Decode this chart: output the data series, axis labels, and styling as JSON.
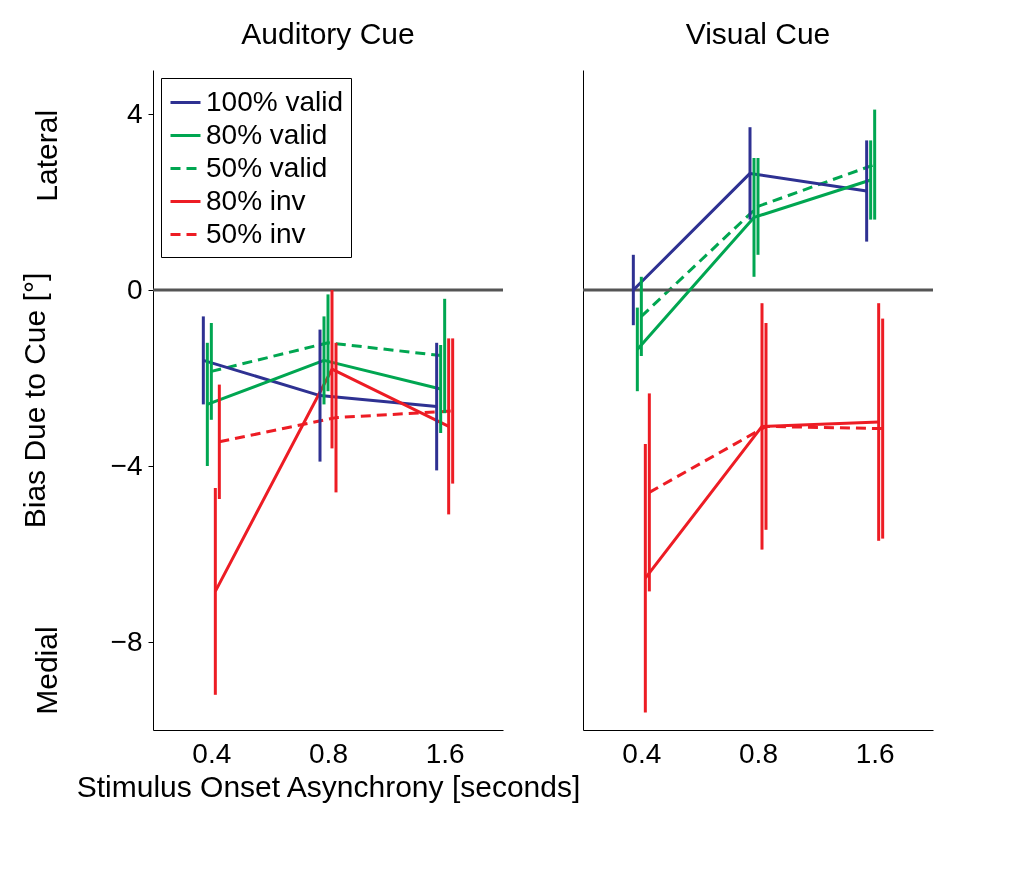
{
  "chart_data": [
    {
      "type": "line",
      "title": "Auditory Cue",
      "xlabel": "Stimulus Onset Asynchrony [seconds]",
      "ylabel": "Bias Due to Cue [°]",
      "categories": [
        "0.4",
        "0.8",
        "1.6"
      ],
      "ylim": [
        -10,
        5
      ],
      "yticks": [
        -8,
        -4,
        0,
        4
      ],
      "legend": "top left",
      "annotations": [
        "Lateral",
        "Medial"
      ],
      "ref_lines": [
        {
          "axis": "y",
          "value": 0,
          "color": "#555555"
        }
      ],
      "series": [
        {
          "name": "100% valid",
          "color": "#2e3192",
          "line_style": "solid",
          "values": [
            -1.6,
            -2.4,
            -2.65
          ],
          "errors": [
            1.0,
            1.5,
            1.45
          ]
        },
        {
          "name": "80% valid",
          "color": "#00a651",
          "line_style": "solid",
          "values": [
            -2.6,
            -1.6,
            -2.25
          ],
          "errors": [
            1.4,
            1.0,
            1.0
          ]
        },
        {
          "name": "50% valid",
          "color": "#00a651",
          "line_style": "dashed",
          "values": [
            -1.85,
            -1.2,
            -1.5
          ],
          "errors": [
            1.1,
            1.1,
            1.3
          ]
        },
        {
          "name": "80% inv",
          "color": "#ed1c24",
          "line_style": "solid",
          "values": [
            -6.85,
            -1.8,
            -3.1
          ],
          "errors": [
            2.35,
            1.8,
            2.0
          ]
        },
        {
          "name": "50% inv",
          "color": "#ed1c24",
          "line_style": "dashed",
          "values": [
            -3.45,
            -2.9,
            -2.75
          ],
          "errors": [
            1.3,
            1.7,
            1.65
          ]
        }
      ]
    },
    {
      "type": "line",
      "title": "Visual Cue",
      "categories": [
        "0.4",
        "0.8",
        "1.6"
      ],
      "ylim": [
        -10,
        5
      ],
      "yticks": [
        -8,
        -4,
        0,
        4
      ],
      "tick_labels": "x",
      "ref_lines": [
        {
          "axis": "y",
          "value": 0,
          "color": "#555555"
        }
      ],
      "series": [
        {
          "color": "#2e3192",
          "line_style": "solid",
          "values": [
            0,
            2.65,
            2.25
          ],
          "errors": [
            0.8,
            1.05,
            1.15
          ]
        },
        {
          "color": "#00a651",
          "line_style": "solid",
          "values": [
            -1.35,
            1.65,
            2.5
          ],
          "errors": [
            0.95,
            1.35,
            0.9
          ]
        },
        {
          "color": "#00a651",
          "line_style": "dashed",
          "values": [
            -0.6,
            1.9,
            2.85
          ],
          "errors": [
            0.9,
            1.1,
            1.25
          ]
        },
        {
          "color": "#ed1c24",
          "line_style": "solid",
          "values": [
            -6.55,
            -3.1,
            -3.0
          ],
          "errors": [
            3.05,
            2.8,
            2.7
          ]
        },
        {
          "color": "#ed1c24",
          "line_style": "dashed",
          "values": [
            -4.6,
            -3.1,
            -3.15
          ],
          "errors": [
            2.25,
            2.35,
            2.5
          ]
        }
      ]
    }
  ]
}
